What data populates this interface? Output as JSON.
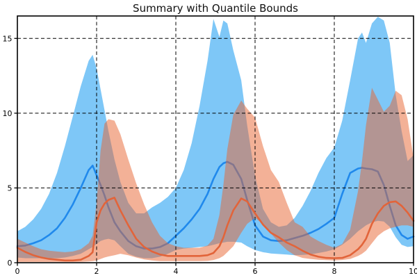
{
  "title": "Summary with Quantile Bounds",
  "axes": {
    "x_tick_labels": [
      "0",
      "2",
      "4",
      "6",
      "8",
      "10"
    ],
    "x_tick_values": [
      0,
      2,
      4,
      6,
      8,
      10
    ],
    "y_tick_labels": [
      "0",
      "5",
      "10",
      "15"
    ],
    "y_tick_values": [
      0,
      5,
      10,
      15
    ],
    "grid_style": "dashed",
    "grid_color": "#000000",
    "spine_color": "#000000"
  },
  "colors": {
    "blue_line": "#2089ec",
    "blue_band": "rgba(20,153,240,0.55)",
    "orange_line": "#e2643a",
    "orange_band": "rgba(231,99,47,0.5)"
  },
  "chart_data": {
    "type": "area",
    "title": "Summary with Quantile Bounds",
    "xlabel": "",
    "ylabel": "",
    "xlim": [
      0,
      10
    ],
    "ylim": [
      0,
      16.5
    ],
    "grid": "dashed both axes (x at 2,4,6,8; y at 5,10,15)",
    "legend": "none",
    "description": "Two periodic series summarized by a median line with shaded quantile bounds; bands overlap producing gray regions",
    "x": [
      0,
      0.2,
      0.4,
      0.6,
      0.8,
      1.0,
      1.2,
      1.4,
      1.6,
      1.8,
      1.9,
      2.0,
      2.1,
      2.2,
      2.3,
      2.45,
      2.6,
      2.8,
      3.0,
      3.2,
      3.4,
      3.6,
      3.8,
      4.0,
      4.2,
      4.4,
      4.6,
      4.8,
      4.95,
      5.1,
      5.2,
      5.3,
      5.45,
      5.65,
      5.8,
      6.0,
      6.2,
      6.4,
      6.6,
      6.8,
      7.0,
      7.2,
      7.4,
      7.6,
      7.8,
      8.0,
      8.2,
      8.4,
      8.6,
      8.7,
      8.8,
      8.95,
      9.1,
      9.25,
      9.4,
      9.55,
      9.7,
      9.85,
      10.0
    ],
    "series": [
      {
        "name": "series-blue",
        "median": [
          1.1,
          1.15,
          1.3,
          1.5,
          1.85,
          2.3,
          3.0,
          3.9,
          5.0,
          6.2,
          6.5,
          5.85,
          5.2,
          4.5,
          3.7,
          2.7,
          2.1,
          1.45,
          1.1,
          0.95,
          0.95,
          1.05,
          1.3,
          1.8,
          2.3,
          2.9,
          3.6,
          4.6,
          5.6,
          6.4,
          6.65,
          6.75,
          6.55,
          5.6,
          4.2,
          2.5,
          1.75,
          1.5,
          1.45,
          1.5,
          1.65,
          1.8,
          2.0,
          2.25,
          2.6,
          3.0,
          4.6,
          6.0,
          6.3,
          6.35,
          6.3,
          6.25,
          6.1,
          5.2,
          3.8,
          2.5,
          1.85,
          1.6,
          1.75
        ],
        "lower": [
          0.35,
          0.3,
          0.3,
          0.3,
          0.3,
          0.3,
          0.35,
          0.45,
          0.6,
          0.9,
          1.05,
          1.25,
          1.45,
          1.55,
          1.6,
          1.5,
          1.1,
          0.6,
          0.4,
          0.3,
          0.3,
          0.4,
          0.6,
          0.85,
          0.95,
          1.0,
          1.05,
          1.1,
          1.2,
          1.3,
          1.35,
          1.4,
          1.4,
          1.35,
          1.1,
          0.85,
          0.7,
          0.62,
          0.58,
          0.55,
          0.5,
          0.52,
          0.56,
          0.65,
          0.75,
          0.9,
          1.2,
          1.6,
          2.1,
          2.3,
          2.5,
          2.7,
          2.8,
          2.75,
          2.4,
          1.7,
          1.2,
          1.05,
          1.1
        ],
        "upper": [
          2.1,
          2.4,
          2.9,
          3.6,
          4.6,
          6.0,
          7.8,
          9.8,
          11.8,
          13.5,
          13.9,
          13.0,
          11.6,
          10.2,
          8.8,
          6.9,
          5.4,
          4.0,
          3.3,
          3.3,
          3.7,
          4.0,
          4.4,
          5.0,
          6.2,
          8.0,
          10.5,
          13.5,
          16.3,
          15.1,
          16.2,
          16.0,
          14.2,
          12.2,
          9.2,
          5.8,
          3.6,
          2.7,
          2.4,
          2.5,
          3.0,
          3.8,
          4.8,
          6.0,
          7.0,
          7.7,
          9.5,
          12.2,
          15.0,
          15.4,
          14.7,
          16.0,
          16.45,
          16.2,
          14.7,
          11.2,
          8.8,
          6.8,
          7.2
        ]
      },
      {
        "name": "series-orange",
        "median": [
          1.0,
          0.72,
          0.5,
          0.35,
          0.25,
          0.2,
          0.15,
          0.15,
          0.2,
          0.45,
          0.7,
          2.7,
          3.5,
          3.95,
          4.2,
          4.35,
          3.5,
          2.5,
          1.6,
          1.05,
          0.75,
          0.55,
          0.45,
          0.45,
          0.45,
          0.45,
          0.45,
          0.5,
          0.65,
          1.1,
          1.7,
          2.5,
          3.5,
          4.3,
          4.1,
          3.3,
          2.55,
          2.0,
          1.7,
          1.35,
          1.1,
          0.8,
          0.55,
          0.4,
          0.32,
          0.3,
          0.32,
          0.5,
          0.9,
          1.2,
          1.6,
          2.6,
          3.3,
          3.8,
          4.05,
          4.1,
          3.8,
          3.35,
          2.8
        ],
        "lower": [
          0.05,
          0.05,
          0.05,
          0.05,
          0.05,
          0.05,
          0.05,
          0.05,
          0.05,
          0.08,
          0.1,
          0.15,
          0.25,
          0.35,
          0.42,
          0.5,
          0.6,
          0.5,
          0.35,
          0.22,
          0.15,
          0.1,
          0.1,
          0.1,
          0.1,
          0.1,
          0.1,
          0.12,
          0.18,
          0.3,
          0.45,
          0.7,
          1.1,
          2.0,
          2.6,
          3.0,
          2.6,
          1.95,
          1.35,
          0.85,
          0.5,
          0.32,
          0.25,
          0.2,
          0.17,
          0.15,
          0.18,
          0.25,
          0.45,
          0.6,
          0.8,
          1.3,
          1.8,
          2.1,
          2.3,
          2.4,
          2.5,
          2.5,
          2.4
        ],
        "upper": [
          1.6,
          1.35,
          1.1,
          0.9,
          0.8,
          0.75,
          0.7,
          0.75,
          0.9,
          1.3,
          1.8,
          4.0,
          7.5,
          9.3,
          9.6,
          9.5,
          8.6,
          6.9,
          5.3,
          3.9,
          2.7,
          1.8,
          1.3,
          1.1,
          1.0,
          1.0,
          1.0,
          1.15,
          1.6,
          3.2,
          5.2,
          7.6,
          9.9,
          10.85,
          10.3,
          9.7,
          7.8,
          6.2,
          5.4,
          4.0,
          2.7,
          2.4,
          1.75,
          1.45,
          1.2,
          1.0,
          1.25,
          2.2,
          4.8,
          6.8,
          9.2,
          11.7,
          10.9,
          10.1,
          10.5,
          11.5,
          11.2,
          9.6,
          7.0
        ]
      }
    ]
  }
}
